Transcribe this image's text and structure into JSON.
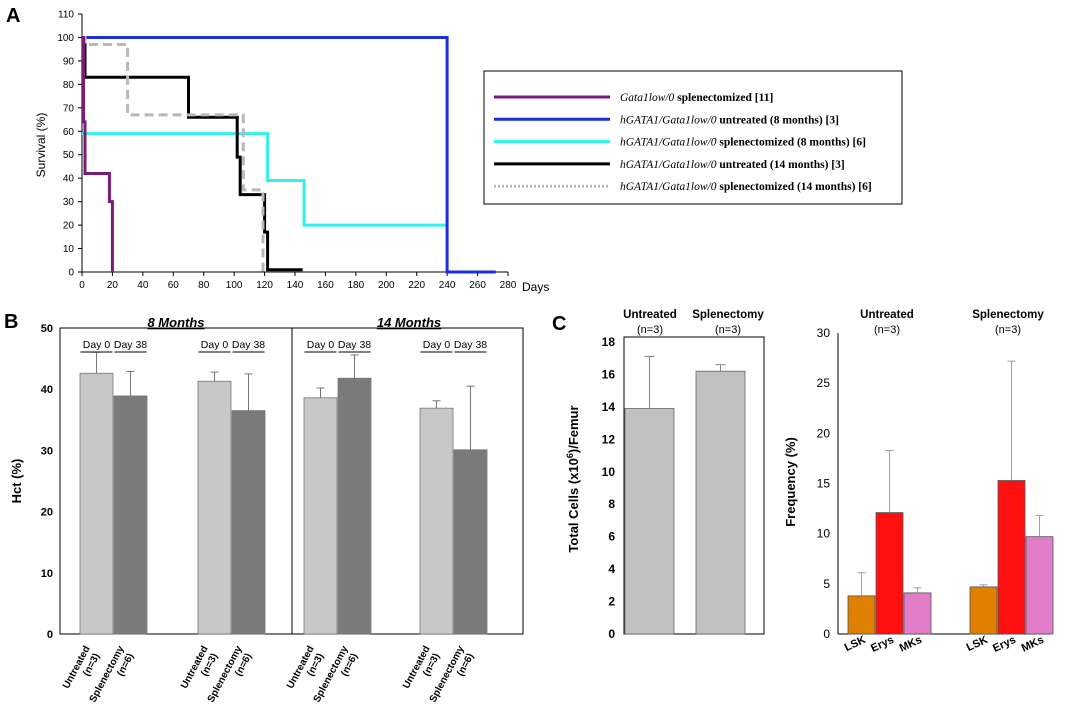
{
  "panels": {
    "a": "A",
    "b": "B",
    "c": "C"
  },
  "chart_data": [
    {
      "id": "A",
      "type": "line",
      "subtype": "kaplan-meier",
      "ylabel": "Survival (%)",
      "xlabel": "Days",
      "xlim": [
        0,
        280
      ],
      "ylim": [
        0,
        110
      ],
      "xticks": [
        0,
        20,
        40,
        60,
        80,
        100,
        120,
        140,
        160,
        180,
        200,
        220,
        240,
        260,
        280
      ],
      "yticks": [
        0,
        10,
        20,
        30,
        40,
        50,
        60,
        70,
        80,
        90,
        100,
        110
      ],
      "legend_position": "right",
      "series": [
        {
          "name": "Gata1low/0 splenectomized [11]",
          "label_italic": "Gata1low/0",
          "label_rest": " splenectomized [11]",
          "color": "#7a1a7a",
          "style": "solid",
          "points": [
            [
              0,
              100
            ],
            [
              1,
              100
            ],
            [
              1,
              64
            ],
            [
              2,
              64
            ],
            [
              2,
              42
            ],
            [
              18,
              42
            ],
            [
              18,
              30
            ],
            [
              20,
              30
            ],
            [
              20,
              0
            ]
          ]
        },
        {
          "name": "hGATA1/Gata1low/0 untreated (8 months) [3]",
          "label_italic": "hGATA1/Gata1low/0",
          "label_rest": " untreated (8 months) [3]",
          "color": "#1a2fd6",
          "style": "solid",
          "points": [
            [
              0,
              100
            ],
            [
              240,
              100
            ],
            [
              240,
              0
            ],
            [
              272,
              0
            ]
          ]
        },
        {
          "name": "hGATA1/Gata1low/0 splenectomized (8 months) [6]",
          "label_italic": "hGATA1/Gata1low/0",
          "label_rest": " splenectomized (8 months) [6]",
          "color": "#30f0f0",
          "style": "solid",
          "points": [
            [
              0,
              59
            ],
            [
              122,
              59
            ],
            [
              122,
              39
            ],
            [
              146,
              39
            ],
            [
              146,
              20
            ],
            [
              240,
              20
            ]
          ]
        },
        {
          "name": "hGATA1/Gata1low/0 untreated (14 months) [3]",
          "label_italic": "hGATA1/Gata1low/0",
          "label_rest": " untreated (14 months) [3]",
          "color": "#000000",
          "style": "solid",
          "points": [
            [
              0,
              100
            ],
            [
              2,
              100
            ],
            [
              2,
              83
            ],
            [
              70,
              83
            ],
            [
              70,
              66
            ],
            [
              102,
              66
            ],
            [
              102,
              49
            ],
            [
              104,
              49
            ],
            [
              104,
              33
            ],
            [
              120,
              33
            ],
            [
              120,
              17
            ],
            [
              122,
              17
            ],
            [
              122,
              1
            ],
            [
              145,
              1
            ]
          ]
        },
        {
          "name": "hGATA1/Gata1low/0 splenectomized (14 months) [6]",
          "label_italic": "hGATA1/Gata1low/0",
          "label_rest": " splenectomized (14 months) [6]",
          "color": "#b8b8b8",
          "style": "dashed",
          "points": [
            [
              0,
              100
            ],
            [
              2,
              100
            ],
            [
              2,
              97
            ],
            [
              30,
              97
            ],
            [
              30,
              67
            ],
            [
              106,
              67
            ],
            [
              106,
              35
            ],
            [
              119,
              35
            ],
            [
              119,
              0
            ]
          ]
        }
      ]
    },
    {
      "id": "B",
      "type": "bar",
      "ylabel": "Hct (%)",
      "ylim": [
        0,
        50
      ],
      "yticks": [
        0,
        10,
        20,
        30,
        40,
        50
      ],
      "facets": [
        "8 Months",
        "14 Months"
      ],
      "day_labels": {
        "day0": "Day 0",
        "day38": "Day 38"
      },
      "categories": [
        {
          "facet": "8 Months",
          "group": "Untreated (n=3)",
          "line1": "Untreated",
          "line2": "(n=3)",
          "values": [
            42.6,
            38.9
          ],
          "errors": [
            3.4,
            4.0
          ]
        },
        {
          "facet": "8 Months",
          "group": "Splenectomy (n=6)",
          "line1": "Splenectomy",
          "line2": "(n=6)",
          "values": [
            41.3,
            36.5
          ],
          "errors": [
            1.5,
            6.0
          ]
        },
        {
          "facet": "14 Months",
          "group": "Untreated (n=3)",
          "line1": "Untreated",
          "line2": "(n=3)",
          "values": [
            38.6,
            41.8
          ],
          "errors": [
            1.6,
            3.8
          ]
        },
        {
          "facet": "14 Months",
          "group": "Splenectomy (n=6)",
          "line1": "Splenectomy",
          "line2": "(n=6)",
          "values": [
            36.9,
            30.1
          ],
          "errors": [
            1.2,
            10.4
          ]
        }
      ],
      "series": [
        {
          "name": "Day 0",
          "color": "#c8c8c8"
        },
        {
          "name": "Day 38",
          "color": "#7a7a7a"
        }
      ]
    },
    {
      "id": "C1",
      "type": "bar",
      "ylabel": "Total Cells (x10",
      "ylabel_sup": "6",
      "ylabel_tail": ")/Femur",
      "ylim": [
        0,
        18
      ],
      "yticks": [
        0,
        2,
        4,
        6,
        8,
        10,
        12,
        14,
        16,
        18
      ],
      "categories": [
        {
          "line1": "Untreated",
          "line2": "(n=3)"
        },
        {
          "line1": "Splenectomy",
          "line2": "(n=3)"
        }
      ],
      "values": [
        13.9,
        16.2
      ],
      "errors": [
        3.2,
        0.4
      ],
      "color": "#c0c0c0"
    },
    {
      "id": "C2",
      "type": "bar",
      "ylabel": "Frequency (%)",
      "ylim": [
        0,
        30
      ],
      "yticks": [
        0,
        5,
        10,
        15,
        20,
        25,
        30
      ],
      "groups": [
        {
          "line1": "Untreated",
          "line2": "(n=3)"
        },
        {
          "line1": "Splenectomy",
          "line2": "(n=3)"
        }
      ],
      "categories": [
        "LSK",
        "Erys",
        "MKs"
      ],
      "colors": [
        "#e08000",
        "#ff1010",
        "#e07cc8"
      ],
      "values": [
        [
          3.8,
          12.1,
          4.1
        ],
        [
          4.7,
          15.3,
          9.7
        ]
      ],
      "errors": [
        [
          2.3,
          6.2,
          0.5
        ],
        [
          0.2,
          11.9,
          2.1
        ]
      ]
    }
  ]
}
